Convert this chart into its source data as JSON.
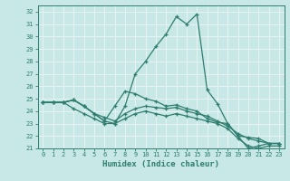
{
  "xlabel": "Humidex (Indice chaleur)",
  "xlim": [
    -0.5,
    23.5
  ],
  "ylim": [
    21,
    32.5
  ],
  "yticks": [
    21,
    22,
    23,
    24,
    25,
    26,
    27,
    28,
    29,
    30,
    31,
    32
  ],
  "xticks": [
    0,
    1,
    2,
    3,
    4,
    5,
    6,
    7,
    8,
    9,
    10,
    11,
    12,
    13,
    14,
    15,
    16,
    17,
    18,
    19,
    20,
    21,
    22,
    23
  ],
  "background_color": "#c8e8e8",
  "grid_color": "#e8f4f4",
  "line_color": "#2e7d6e",
  "lines": [
    [
      24.7,
      24.7,
      24.7,
      24.9,
      24.4,
      23.8,
      23.2,
      23.0,
      24.4,
      27.0,
      28.0,
      29.2,
      30.2,
      31.6,
      31.0,
      31.8,
      25.7,
      24.6,
      23.0,
      22.0,
      21.0,
      21.2,
      21.4,
      21.4
    ],
    [
      24.7,
      24.7,
      24.7,
      24.9,
      24.4,
      23.8,
      23.2,
      24.4,
      25.6,
      25.4,
      25.0,
      24.8,
      24.4,
      24.5,
      24.2,
      24.0,
      23.4,
      23.1,
      23.0,
      22.0,
      21.9,
      21.8,
      21.4,
      21.4
    ],
    [
      24.7,
      24.7,
      24.7,
      24.9,
      24.4,
      23.8,
      23.5,
      23.2,
      23.8,
      24.2,
      24.4,
      24.3,
      24.2,
      24.3,
      24.0,
      23.8,
      23.6,
      23.2,
      22.8,
      22.2,
      21.8,
      21.6,
      21.4,
      21.4
    ],
    [
      24.7,
      24.7,
      24.7,
      24.2,
      23.8,
      23.4,
      23.0,
      23.0,
      23.4,
      23.8,
      24.0,
      23.8,
      23.6,
      23.8,
      23.6,
      23.4,
      23.2,
      23.0,
      22.6,
      21.8,
      21.2,
      21.0,
      21.2,
      21.2
    ]
  ]
}
